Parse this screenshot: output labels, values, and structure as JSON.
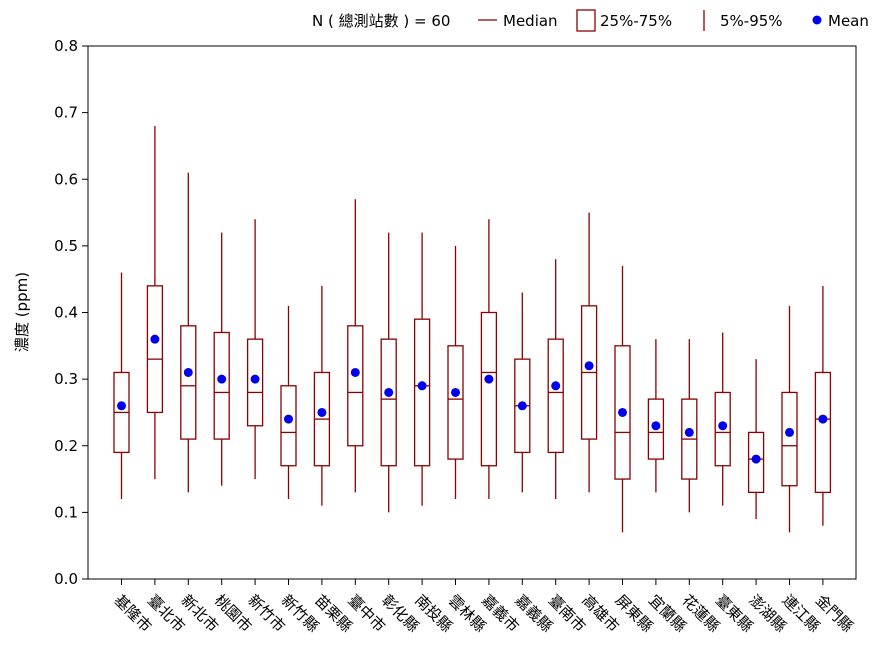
{
  "chart_data": {
    "type": "box",
    "ylabel": "濃度 (ppm)",
    "ylim": [
      0.0,
      0.8
    ],
    "yticks": [
      "0.0",
      "0.1",
      "0.2",
      "0.3",
      "0.4",
      "0.5",
      "0.6",
      "0.7",
      "0.8"
    ],
    "grid": false,
    "legend": {
      "position": "top-right",
      "n_label": "N ( 總測站數 ) = 60",
      "median_label": "Median",
      "iqr_label": "25%-75%",
      "whisker_label": "5%-95%",
      "mean_label": "Mean"
    },
    "colors": {
      "box": "#8b0000",
      "mean": "#0000ee",
      "axis": "#000000"
    },
    "categories": [
      "基隆市",
      "臺北市",
      "新北市",
      "桃園市",
      "新竹市",
      "新竹縣",
      "苗栗縣",
      "臺中市",
      "彰化縣",
      "南投縣",
      "雲林縣",
      "嘉義市",
      "嘉義縣",
      "臺南市",
      "高雄市",
      "屏東縣",
      "宜蘭縣",
      "花蓮縣",
      "臺東縣",
      "澎湖縣",
      "連江縣",
      "金門縣"
    ],
    "p5": [
      0.12,
      0.15,
      0.13,
      0.14,
      0.15,
      0.12,
      0.11,
      0.13,
      0.1,
      0.11,
      0.12,
      0.12,
      0.13,
      0.12,
      0.13,
      0.07,
      0.13,
      0.1,
      0.11,
      0.09,
      0.07,
      0.08
    ],
    "q1": [
      0.19,
      0.25,
      0.21,
      0.21,
      0.23,
      0.17,
      0.17,
      0.2,
      0.17,
      0.17,
      0.18,
      0.17,
      0.19,
      0.19,
      0.21,
      0.15,
      0.18,
      0.15,
      0.17,
      0.13,
      0.14,
      0.13
    ],
    "median": [
      0.25,
      0.33,
      0.29,
      0.28,
      0.28,
      0.22,
      0.24,
      0.28,
      0.27,
      0.29,
      0.27,
      0.31,
      0.26,
      0.28,
      0.31,
      0.22,
      0.22,
      0.21,
      0.22,
      0.18,
      0.2,
      0.24
    ],
    "q3": [
      0.31,
      0.44,
      0.38,
      0.37,
      0.36,
      0.29,
      0.31,
      0.38,
      0.36,
      0.39,
      0.35,
      0.4,
      0.33,
      0.36,
      0.41,
      0.35,
      0.27,
      0.27,
      0.28,
      0.22,
      0.28,
      0.31
    ],
    "p95": [
      0.46,
      0.68,
      0.61,
      0.52,
      0.54,
      0.41,
      0.44,
      0.57,
      0.52,
      0.52,
      0.5,
      0.54,
      0.43,
      0.48,
      0.55,
      0.47,
      0.36,
      0.36,
      0.37,
      0.33,
      0.41,
      0.44
    ],
    "mean": [
      0.26,
      0.36,
      0.31,
      0.3,
      0.3,
      0.24,
      0.25,
      0.31,
      0.28,
      0.29,
      0.28,
      0.3,
      0.26,
      0.29,
      0.32,
      0.25,
      0.23,
      0.22,
      0.23,
      0.18,
      0.22,
      0.24
    ]
  }
}
